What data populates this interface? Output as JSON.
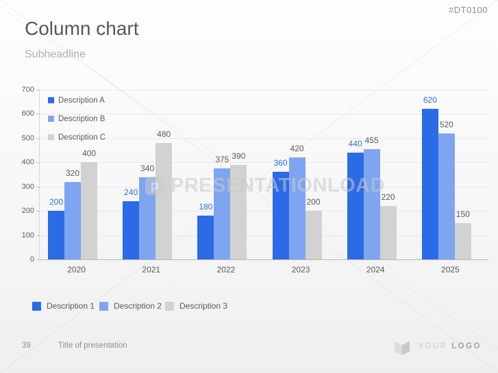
{
  "slide": {
    "code": "#DT0100",
    "title": "Column chart",
    "subheadline": "Subheadline",
    "watermark": {
      "logo_letter": "p",
      "text": "PRESENTATIONLOAD"
    },
    "footer": {
      "page_number": "39",
      "presentation_title": "Title of presentation"
    },
    "brand": {
      "word1": "YOUR",
      "word2": "LOGO"
    }
  },
  "colors": {
    "series_a": "#2b6be6",
    "series_b": "#7ea6f0",
    "series_c": "#d2d2d2",
    "value_label_a": "#2f6fe6",
    "value_label_bc": "#595959",
    "code_text": "#8f8f8f",
    "gridline": "#e8e8e8",
    "axis_baseline": "#b5b5b5"
  },
  "chart_data": {
    "type": "bar",
    "title": "",
    "categories": [
      "2020",
      "2021",
      "2022",
      "2023",
      "2024",
      "2025"
    ],
    "series": [
      {
        "name": "Description A",
        "color": "#2b6be6",
        "label_color": "#2f6fe6",
        "values": [
          200,
          240,
          180,
          360,
          440,
          620
        ]
      },
      {
        "name": "Description B",
        "color": "#7ea6f0",
        "label_color": "#595959",
        "values": [
          320,
          340,
          375,
          420,
          455,
          520
        ]
      },
      {
        "name": "Description C",
        "color": "#d2d2d2",
        "label_color": "#595959",
        "values": [
          400,
          480,
          390,
          200,
          220,
          150
        ]
      }
    ],
    "ylim": [
      0,
      700
    ],
    "yticks": [
      0,
      100,
      200,
      300,
      400,
      500,
      600,
      700
    ],
    "grid": true,
    "legend_top": [
      "Description A",
      "Description B",
      "Description C"
    ],
    "legend_bottom": [
      "Description 1",
      "Description 2",
      "Description 3"
    ],
    "legend_top_position": "inside-upper-left",
    "legend_bottom_position": "below-chart"
  }
}
